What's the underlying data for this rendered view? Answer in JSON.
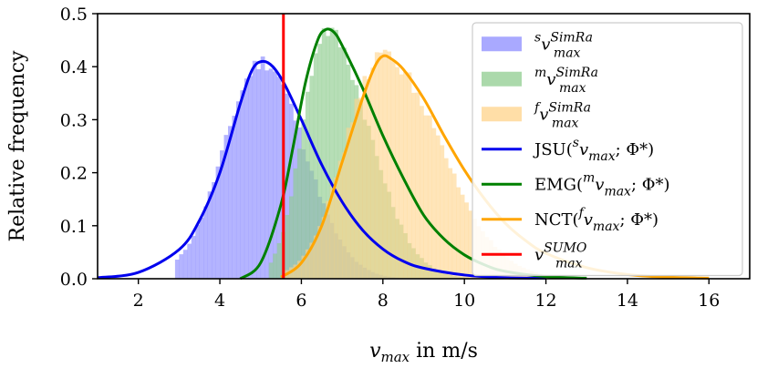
{
  "chart_data": {
    "type": "histogram+line",
    "xlabel_var": "v",
    "xlabel_sub": "max",
    "xlabel_text": " in m/s",
    "ylabel": "Relative frequency",
    "xlim": [
      1,
      17
    ],
    "ylim": [
      0,
      0.5
    ],
    "xticks": [
      "2",
      "4",
      "6",
      "8",
      "10",
      "12",
      "14",
      "16"
    ],
    "yticks": [
      "0.0",
      "0.1",
      "0.2",
      "0.3",
      "0.4",
      "0.5"
    ],
    "vline": {
      "x": 5.56,
      "color": "#ff0000"
    },
    "legend_position": "upper-right",
    "histograms": [
      {
        "key": "s",
        "color": "#8c8cff",
        "alpha": 0.65,
        "mode": 5.05,
        "peak": 0.41,
        "sigma_left": 0.95,
        "sigma_right": 1.02,
        "range": [
          2.9,
          9.3
        ]
      },
      {
        "key": "m",
        "color": "#8fcc8f",
        "alpha": 0.65,
        "mode": 6.6,
        "peak": 0.47,
        "sigma_left": 0.58,
        "sigma_right": 1.05,
        "range": [
          5.2,
          10.5
        ]
      },
      {
        "key": "f",
        "color": "#ffd38a",
        "alpha": 0.6,
        "mode": 8.0,
        "peak": 0.42,
        "sigma_left": 0.92,
        "sigma_right": 1.4,
        "range": [
          5.6,
          14.6
        ]
      }
    ],
    "curves": [
      {
        "key": "JSU",
        "color": "#0000ee",
        "points": [
          [
            1,
            0.002
          ],
          [
            2,
            0.012
          ],
          [
            3,
            0.055
          ],
          [
            3.5,
            0.11
          ],
          [
            4,
            0.2
          ],
          [
            4.5,
            0.33
          ],
          [
            4.8,
            0.395
          ],
          [
            5.05,
            0.41
          ],
          [
            5.3,
            0.4
          ],
          [
            5.6,
            0.365
          ],
          [
            6,
            0.3
          ],
          [
            6.5,
            0.215
          ],
          [
            7,
            0.145
          ],
          [
            7.5,
            0.092
          ],
          [
            8,
            0.056
          ],
          [
            8.5,
            0.033
          ],
          [
            9,
            0.02
          ],
          [
            10,
            0.007
          ],
          [
            11,
            0.002
          ],
          [
            12,
            0.001
          ]
        ]
      },
      {
        "key": "EMG",
        "color": "#008000",
        "points": [
          [
            4.5,
            0.0
          ],
          [
            5,
            0.03
          ],
          [
            5.5,
            0.14
          ],
          [
            5.8,
            0.25
          ],
          [
            6.1,
            0.37
          ],
          [
            6.4,
            0.45
          ],
          [
            6.6,
            0.47
          ],
          [
            6.8,
            0.465
          ],
          [
            7,
            0.44
          ],
          [
            7.5,
            0.36
          ],
          [
            8,
            0.27
          ],
          [
            8.5,
            0.19
          ],
          [
            9,
            0.12
          ],
          [
            9.5,
            0.075
          ],
          [
            10,
            0.045
          ],
          [
            10.5,
            0.026
          ],
          [
            11,
            0.014
          ],
          [
            12,
            0.004
          ],
          [
            13,
            0.001
          ]
        ]
      },
      {
        "key": "NCT",
        "color": "#ffa500",
        "points": [
          [
            5.5,
            0.003
          ],
          [
            6,
            0.03
          ],
          [
            6.5,
            0.1
          ],
          [
            7,
            0.22
          ],
          [
            7.5,
            0.34
          ],
          [
            7.8,
            0.4
          ],
          [
            8,
            0.42
          ],
          [
            8.2,
            0.415
          ],
          [
            8.5,
            0.395
          ],
          [
            9,
            0.34
          ],
          [
            9.5,
            0.27
          ],
          [
            10,
            0.205
          ],
          [
            10.5,
            0.15
          ],
          [
            11,
            0.105
          ],
          [
            11.5,
            0.072
          ],
          [
            12,
            0.048
          ],
          [
            13,
            0.021
          ],
          [
            14,
            0.008
          ],
          [
            15,
            0.003
          ],
          [
            16,
            0.001
          ]
        ]
      }
    ],
    "legend": [
      {
        "kind": "patch",
        "color": "#8c8cff",
        "pre": "s",
        "var": "v",
        "sup": "SimRa",
        "sub": "max",
        "tail": ""
      },
      {
        "kind": "patch",
        "color": "#8fcc8f",
        "pre": "m",
        "var": "v",
        "sup": "SimRa",
        "sub": "max",
        "tail": ""
      },
      {
        "kind": "patch",
        "color": "#ffd38a",
        "pre": "f",
        "var": "v",
        "sup": "SimRa",
        "sub": "max",
        "tail": ""
      },
      {
        "kind": "line",
        "color": "#0000ee",
        "label": "JSU(",
        "pre": "s",
        "var": "v",
        "sub": "max",
        "tail": "; Φ*)"
      },
      {
        "kind": "line",
        "color": "#008000",
        "label": "EMG(",
        "pre": "m",
        "var": "v",
        "sub": "max",
        "tail": "; Φ*)"
      },
      {
        "kind": "line",
        "color": "#ffa500",
        "label": "NCT(",
        "pre": "f",
        "var": "v",
        "sub": "max",
        "tail": "; Φ*)"
      },
      {
        "kind": "line",
        "color": "#ff0000",
        "var": "v",
        "sup": "SUMO",
        "sub": "max",
        "tail": ""
      }
    ]
  }
}
